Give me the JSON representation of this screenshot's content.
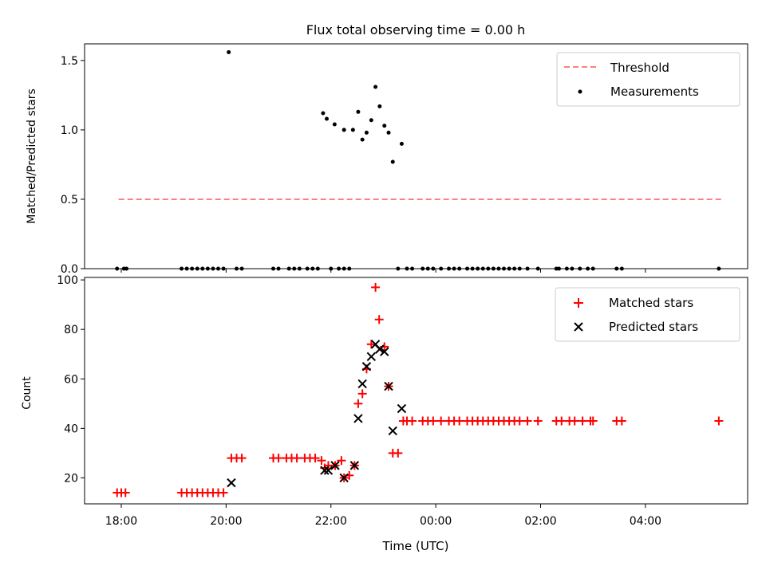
{
  "chart_data": [
    {
      "type": "scatter",
      "title": "Flux total observing time = 0.00 h",
      "xlabel": "",
      "ylabel": "Matched/Predicted stars",
      "ylim": [
        0,
        1.62
      ],
      "yticks": [
        "0.0",
        "0.5",
        "1.0",
        "1.5"
      ],
      "ytick_values": [
        0,
        0.5,
        1.0,
        1.5
      ],
      "legend": {
        "placement": "top-right",
        "entries": [
          "Threshold",
          "Measurements"
        ]
      },
      "threshold": {
        "name": "Threshold",
        "value": 0.5,
        "x_start": 17.95,
        "x_end": 29.5,
        "color": "#ff7f7f"
      },
      "series": [
        {
          "name": "Measurements",
          "color": "#000000",
          "points": [
            [
              17.92,
              0
            ],
            [
              18.05,
              0
            ],
            [
              18.1,
              0
            ],
            [
              19.15,
              0
            ],
            [
              19.25,
              0
            ],
            [
              19.35,
              0
            ],
            [
              19.45,
              0
            ],
            [
              19.55,
              0
            ],
            [
              19.65,
              0
            ],
            [
              19.75,
              0
            ],
            [
              19.85,
              0
            ],
            [
              19.95,
              0
            ],
            [
              20.05,
              1.56
            ],
            [
              20.2,
              0
            ],
            [
              20.3,
              0
            ],
            [
              20.9,
              0
            ],
            [
              21.0,
              0
            ],
            [
              21.2,
              0
            ],
            [
              21.3,
              0
            ],
            [
              21.4,
              0
            ],
            [
              21.55,
              0
            ],
            [
              21.65,
              0
            ],
            [
              21.75,
              0
            ],
            [
              21.85,
              1.12
            ],
            [
              21.92,
              1.08
            ],
            [
              22.07,
              1.04
            ],
            [
              22.25,
              1.0
            ],
            [
              22.42,
              1.0
            ],
            [
              22.52,
              1.13
            ],
            [
              22.6,
              0.93
            ],
            [
              22.68,
              0.98
            ],
            [
              22.77,
              1.07
            ],
            [
              22.85,
              1.31
            ],
            [
              22.93,
              1.17
            ],
            [
              23.02,
              1.03
            ],
            [
              23.1,
              0.98
            ],
            [
              23.18,
              0.77
            ],
            [
              23.35,
              0.9
            ],
            [
              22.0,
              0
            ],
            [
              22.15,
              0
            ],
            [
              22.25,
              0
            ],
            [
              22.35,
              0
            ],
            [
              23.28,
              0
            ],
            [
              23.45,
              0
            ],
            [
              23.55,
              0
            ],
            [
              23.75,
              0
            ],
            [
              23.85,
              0
            ],
            [
              23.95,
              0
            ],
            [
              24.1,
              0
            ],
            [
              24.25,
              0
            ],
            [
              24.35,
              0
            ],
            [
              24.45,
              0
            ],
            [
              24.6,
              0
            ],
            [
              24.7,
              0
            ],
            [
              24.8,
              0
            ],
            [
              24.9,
              0
            ],
            [
              25.0,
              0
            ],
            [
              25.1,
              0
            ],
            [
              25.2,
              0
            ],
            [
              25.3,
              0
            ],
            [
              25.4,
              0
            ],
            [
              25.5,
              0
            ],
            [
              25.6,
              0
            ],
            [
              25.75,
              0
            ],
            [
              25.95,
              0
            ],
            [
              26.3,
              0
            ],
            [
              26.35,
              0
            ],
            [
              26.5,
              0
            ],
            [
              26.6,
              0
            ],
            [
              26.75,
              0
            ],
            [
              26.9,
              0
            ],
            [
              27.0,
              0
            ],
            [
              27.45,
              0
            ],
            [
              27.55,
              0
            ],
            [
              29.4,
              0
            ]
          ]
        }
      ]
    },
    {
      "type": "scatter",
      "title": "",
      "xlabel": "Time (UTC)",
      "ylabel": "Count",
      "xlim": [
        17.3,
        29.95
      ],
      "ylim": [
        9.5,
        101
      ],
      "xticks": [
        "18:00",
        "20:00",
        "22:00",
        "00:00",
        "02:00",
        "04:00"
      ],
      "xtick_values": [
        18,
        20,
        22,
        24,
        26,
        28
      ],
      "yticks": [
        "20",
        "40",
        "60",
        "80",
        "100"
      ],
      "ytick_values": [
        20,
        40,
        60,
        80,
        100
      ],
      "legend": {
        "placement": "top-right",
        "entries": [
          "Matched stars",
          "Predicted stars"
        ]
      },
      "series": [
        {
          "name": "Matched stars",
          "marker": "plus",
          "color": "#ff0000",
          "points": [
            [
              17.92,
              14
            ],
            [
              18.0,
              14
            ],
            [
              18.08,
              14
            ],
            [
              19.15,
              14
            ],
            [
              19.25,
              14
            ],
            [
              19.35,
              14
            ],
            [
              19.45,
              14
            ],
            [
              19.55,
              14
            ],
            [
              19.65,
              14
            ],
            [
              19.75,
              14
            ],
            [
              19.85,
              14
            ],
            [
              19.95,
              14
            ],
            [
              20.1,
              28
            ],
            [
              20.2,
              28
            ],
            [
              20.3,
              28
            ],
            [
              20.9,
              28
            ],
            [
              21.0,
              28
            ],
            [
              21.15,
              28
            ],
            [
              21.25,
              28
            ],
            [
              21.35,
              28
            ],
            [
              21.5,
              28
            ],
            [
              21.6,
              28
            ],
            [
              21.7,
              28
            ],
            [
              21.82,
              27
            ],
            [
              21.88,
              24
            ],
            [
              21.95,
              25
            ],
            [
              22.08,
              25
            ],
            [
              22.2,
              27
            ],
            [
              22.25,
              20
            ],
            [
              22.35,
              21
            ],
            [
              22.45,
              25
            ],
            [
              22.52,
              50
            ],
            [
              22.6,
              54
            ],
            [
              22.68,
              64
            ],
            [
              22.77,
              74
            ],
            [
              22.85,
              97
            ],
            [
              22.92,
              84
            ],
            [
              23.02,
              73
            ],
            [
              23.1,
              57
            ],
            [
              23.18,
              30
            ],
            [
              23.28,
              30
            ],
            [
              23.38,
              43
            ],
            [
              23.45,
              43
            ],
            [
              23.55,
              43
            ],
            [
              23.75,
              43
            ],
            [
              23.85,
              43
            ],
            [
              23.95,
              43
            ],
            [
              24.1,
              43
            ],
            [
              24.25,
              43
            ],
            [
              24.35,
              43
            ],
            [
              24.45,
              43
            ],
            [
              24.6,
              43
            ],
            [
              24.7,
              43
            ],
            [
              24.8,
              43
            ],
            [
              24.9,
              43
            ],
            [
              25.0,
              43
            ],
            [
              25.1,
              43
            ],
            [
              25.2,
              43
            ],
            [
              25.3,
              43
            ],
            [
              25.4,
              43
            ],
            [
              25.5,
              43
            ],
            [
              25.6,
              43
            ],
            [
              25.75,
              43
            ],
            [
              25.95,
              43
            ],
            [
              26.3,
              43
            ],
            [
              26.4,
              43
            ],
            [
              26.55,
              43
            ],
            [
              26.65,
              43
            ],
            [
              26.8,
              43
            ],
            [
              26.95,
              43
            ],
            [
              27.0,
              43
            ],
            [
              27.45,
              43
            ],
            [
              27.55,
              43
            ],
            [
              29.4,
              43
            ]
          ]
        },
        {
          "name": "Predicted stars",
          "marker": "x",
          "color": "#000000",
          "points": [
            [
              20.1,
              18
            ],
            [
              21.88,
              23
            ],
            [
              21.95,
              23
            ],
            [
              22.08,
              25
            ],
            [
              22.25,
              20
            ],
            [
              22.45,
              25
            ],
            [
              22.52,
              44
            ],
            [
              22.6,
              58
            ],
            [
              22.68,
              65
            ],
            [
              22.77,
              69
            ],
            [
              22.85,
              74
            ],
            [
              22.93,
              72
            ],
            [
              23.02,
              71
            ],
            [
              23.1,
              57
            ],
            [
              23.18,
              39
            ],
            [
              23.35,
              48
            ]
          ]
        }
      ]
    }
  ]
}
